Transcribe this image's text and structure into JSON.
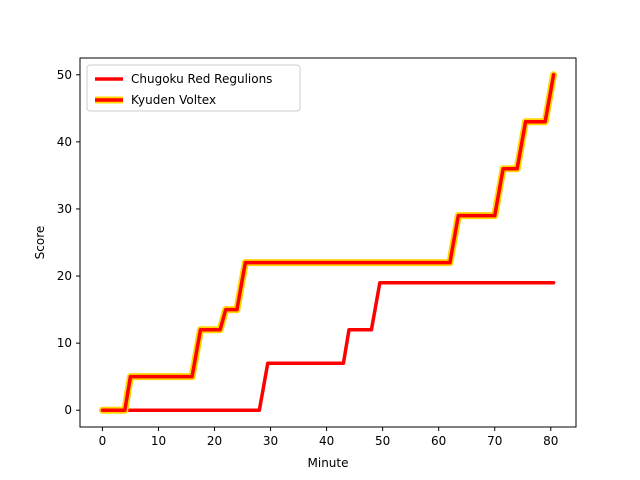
{
  "chart_data": {
    "type": "line",
    "title": "",
    "xlabel": "Minute",
    "ylabel": "Score",
    "xlim": [
      -4,
      84.5
    ],
    "ylim": [
      -2.5,
      52.5
    ],
    "xticks": [
      0,
      10,
      20,
      30,
      40,
      50,
      60,
      70,
      80
    ],
    "yticks": [
      0,
      10,
      20,
      30,
      40,
      50
    ],
    "grid": false,
    "legend_position": "top-left",
    "series": [
      {
        "name": "Chugoku Red Regulions",
        "color": "#ff0000",
        "outline": null,
        "points": [
          [
            4.5,
            0
          ],
          [
            28,
            0
          ],
          [
            29.5,
            7
          ],
          [
            43,
            7
          ],
          [
            44,
            12
          ],
          [
            48,
            12
          ],
          [
            49.5,
            19
          ],
          [
            80.5,
            19
          ]
        ]
      },
      {
        "name": "Kyuden Voltex",
        "color": "#ff0000",
        "outline": "#ffd700",
        "points": [
          [
            0,
            0
          ],
          [
            4,
            0
          ],
          [
            5,
            5
          ],
          [
            16,
            5
          ],
          [
            17.5,
            12
          ],
          [
            21,
            12
          ],
          [
            22,
            15
          ],
          [
            24,
            15
          ],
          [
            25.5,
            22
          ],
          [
            62,
            22
          ],
          [
            63.5,
            29
          ],
          [
            70,
            29
          ],
          [
            71.5,
            36
          ],
          [
            74,
            36
          ],
          [
            75.5,
            43
          ],
          [
            79,
            43
          ],
          [
            80.5,
            50
          ]
        ]
      }
    ]
  }
}
